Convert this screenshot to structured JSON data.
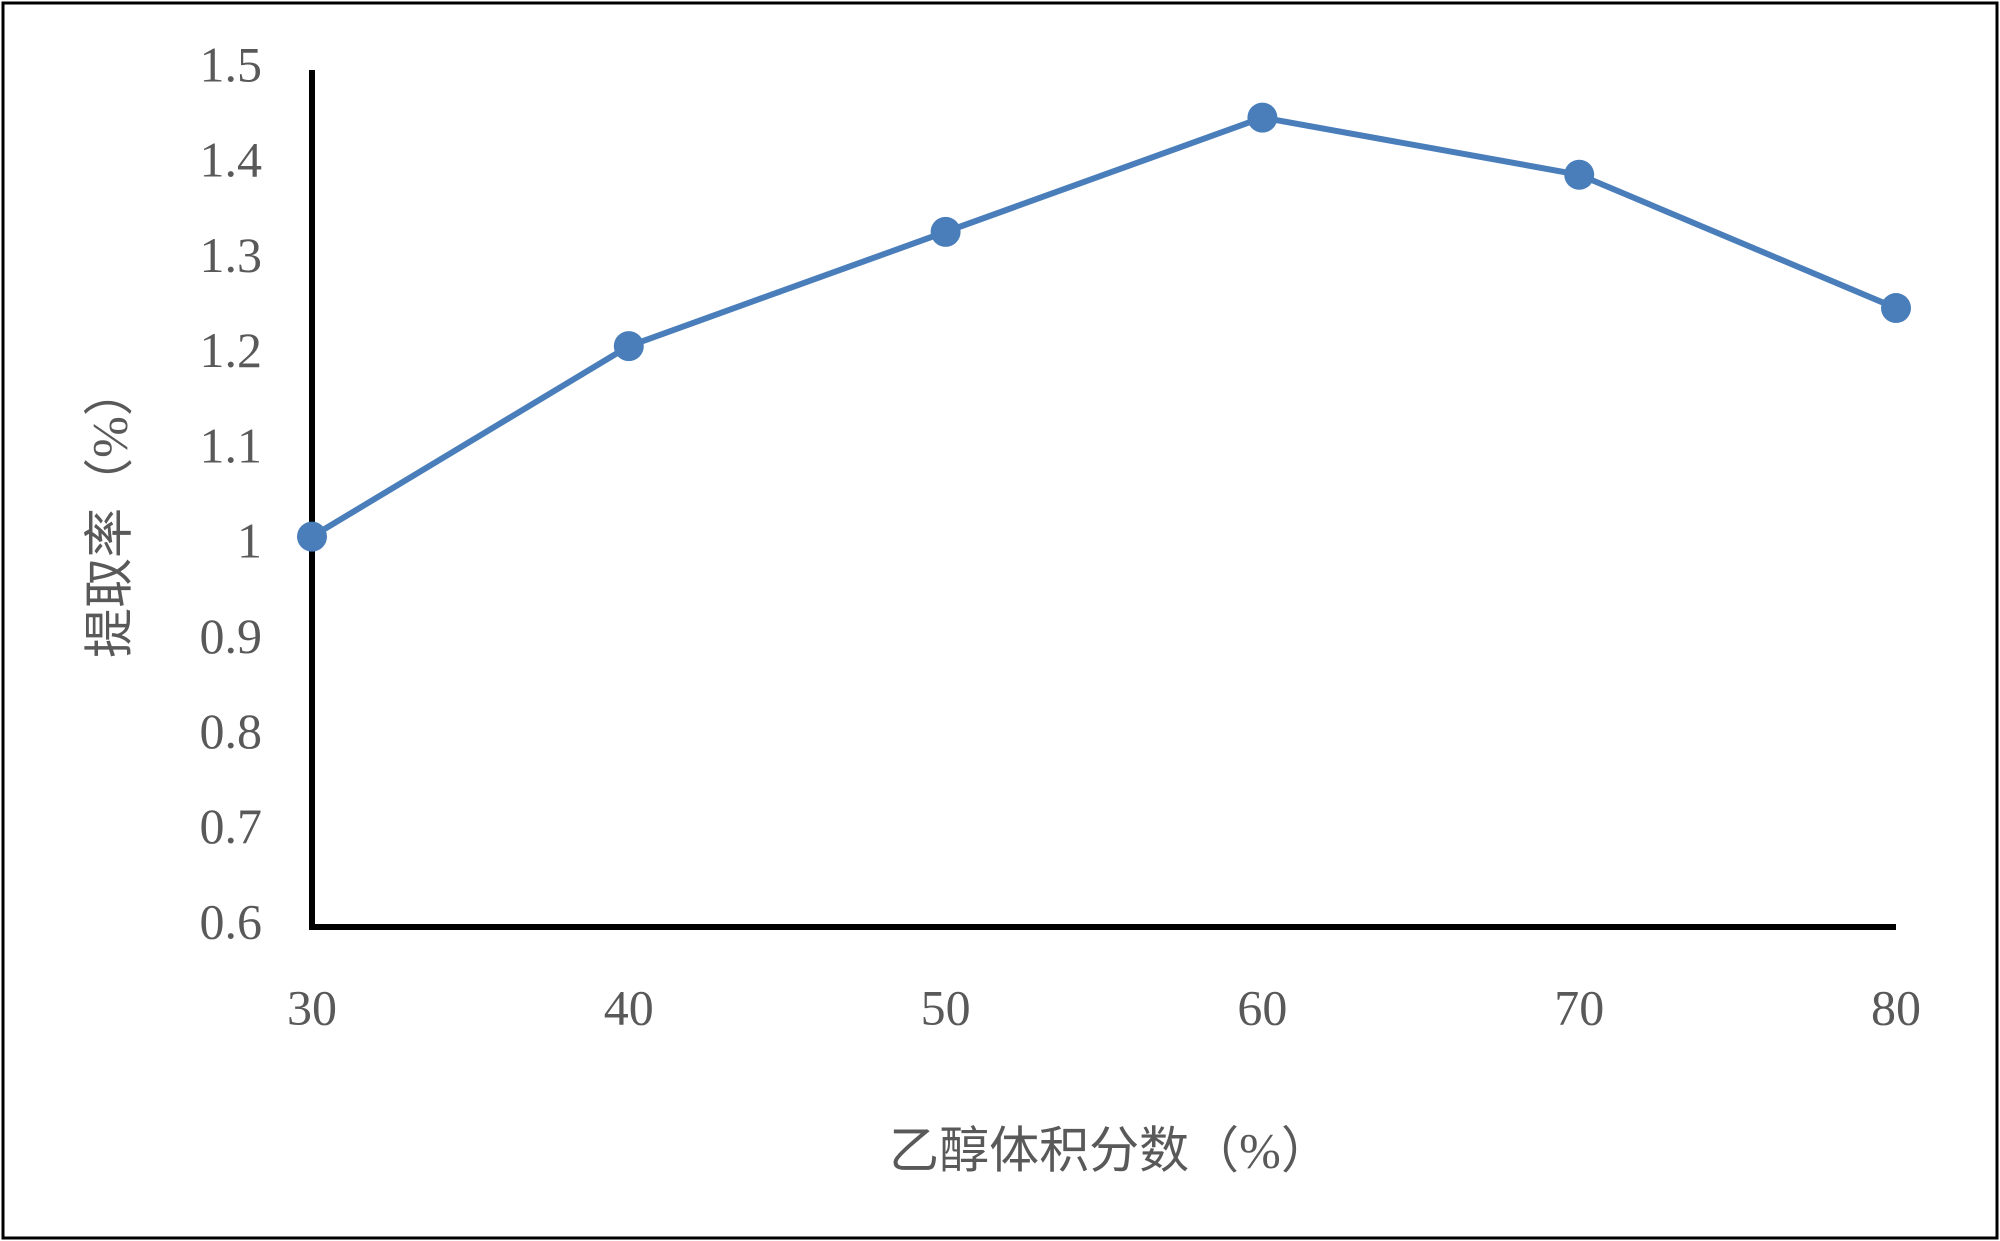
{
  "chart_data": {
    "type": "line",
    "x_label": "乙醇体积分数（%）",
    "y_label": "提取率（%）",
    "x": [
      30,
      40,
      50,
      60,
      70,
      80
    ],
    "values": [
      1.01,
      1.21,
      1.33,
      1.45,
      1.39,
      1.25
    ],
    "color": "#4a7ebb",
    "xlim": [
      30,
      80
    ],
    "xticks": [
      30,
      40,
      50,
      60,
      70,
      80
    ],
    "ylim": [
      0.6,
      1.5
    ],
    "yticks": [
      0.6,
      0.7,
      0.8,
      0.9,
      1,
      1.1,
      1.2,
      1.3,
      1.4,
      1.5
    ],
    "grid": false
  }
}
